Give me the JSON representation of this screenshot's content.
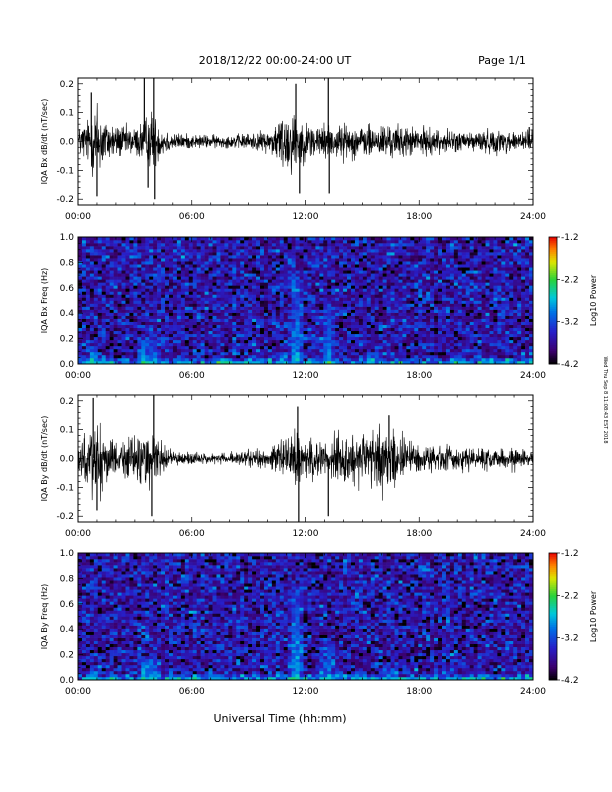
{
  "header": {
    "title": "2018/12/22  00:00-24:00 UT",
    "page": "Page 1/1"
  },
  "xlabel": "Universal Time (hh:mm)",
  "side_note": "Wed Thu Sep 8 11:08:43 EST 2018",
  "colorbar": {
    "label": "Log10 Power",
    "ticks": [
      "-1.2",
      "-2.2",
      "-3.2",
      "-4.2"
    ]
  },
  "chart_data": [
    {
      "type": "line",
      "name": "bx-dbdt",
      "ylabel": "IQA Bx dB/dt (nT/sec)",
      "ylim": [
        -0.22,
        0.22
      ],
      "yticks": [
        "0.2",
        "0.1",
        "0.0",
        "-0.1",
        "-0.2"
      ],
      "xticks": [
        "00:00",
        "06:00",
        "12:00",
        "18:00",
        "24:00"
      ],
      "xlim": [
        "00:00",
        "24:00"
      ],
      "envelope": {
        "hours": [
          0.0,
          0.6,
          1.0,
          1.5,
          2.0,
          3.0,
          3.5,
          3.9,
          4.3,
          5.0,
          6.0,
          8.0,
          10.0,
          10.5,
          11.0,
          11.5,
          12.0,
          12.5,
          13.0,
          14.0,
          15.0,
          16.0,
          17.0,
          18.0,
          19.0,
          20.0,
          21.0,
          22.0,
          23.0,
          23.5,
          24.0
        ],
        "amplitude": [
          0.04,
          0.07,
          0.13,
          0.06,
          0.05,
          0.04,
          0.07,
          0.09,
          0.05,
          0.025,
          0.02,
          0.018,
          0.03,
          0.06,
          0.1,
          0.09,
          0.05,
          0.06,
          0.05,
          0.05,
          0.045,
          0.05,
          0.045,
          0.04,
          0.035,
          0.03,
          0.03,
          0.035,
          0.03,
          0.04,
          0.03
        ]
      },
      "spikes": [
        {
          "hour": 0.7,
          "value": 0.17
        },
        {
          "hour": 1.0,
          "value": -0.19
        },
        {
          "hour": 3.5,
          "value": 0.22
        },
        {
          "hour": 3.7,
          "value": -0.16
        },
        {
          "hour": 4.0,
          "value": 0.22
        },
        {
          "hour": 4.05,
          "value": -0.2
        },
        {
          "hour": 11.5,
          "value": 0.2
        },
        {
          "hour": 11.7,
          "value": -0.18
        },
        {
          "hour": 13.2,
          "value": 0.22
        },
        {
          "hour": 13.25,
          "value": -0.18
        },
        {
          "hour": 23.8,
          "value": 0.05
        }
      ]
    },
    {
      "type": "heatmap",
      "name": "bx-spectrogram",
      "ylabel": "IQA Bx Freq (Hz)",
      "ylim": [
        0.0,
        1.0
      ],
      "yticks": [
        "1.0",
        "0.8",
        "0.6",
        "0.4",
        "0.2",
        "0.0"
      ],
      "xticks": [
        "00:00",
        "06:00",
        "12:00",
        "18:00",
        "24:00"
      ],
      "zlim": [
        -4.2,
        -1.2
      ],
      "background_log_power": -3.6,
      "bands": [
        {
          "hour": 0.8,
          "max_freq": 0.1,
          "level": -2.4
        },
        {
          "hour": 3.5,
          "max_freq": 0.2,
          "level": -2.6
        },
        {
          "hour": 4.0,
          "max_freq": 0.2,
          "level": -2.8
        },
        {
          "hour": 11.5,
          "max_freq": 0.75,
          "level": -2.6
        },
        {
          "hour": 13.2,
          "max_freq": 0.5,
          "level": -2.9
        },
        {
          "hour": 15.5,
          "max_freq": 0.1,
          "level": -2.7
        }
      ]
    },
    {
      "type": "line",
      "name": "by-dbdt",
      "ylabel": "IQA By dB/dt (nT/sec)",
      "ylim": [
        -0.22,
        0.22
      ],
      "yticks": [
        "0.2",
        "0.1",
        "0.0",
        "-0.1",
        "-0.2"
      ],
      "xticks": [
        "00:00",
        "06:00",
        "12:00",
        "18:00",
        "24:00"
      ],
      "xlim": [
        "00:00",
        "24:00"
      ],
      "envelope": {
        "hours": [
          0.0,
          0.6,
          1.0,
          1.5,
          2.0,
          3.0,
          3.5,
          3.9,
          4.3,
          5.0,
          6.0,
          8.0,
          10.0,
          10.5,
          11.0,
          11.5,
          12.0,
          12.5,
          13.0,
          14.0,
          15.0,
          16.0,
          16.5,
          17.0,
          18.0,
          19.0,
          20.0,
          21.0,
          22.0,
          23.0,
          24.0
        ],
        "amplitude": [
          0.05,
          0.09,
          0.13,
          0.07,
          0.05,
          0.06,
          0.08,
          0.08,
          0.05,
          0.02,
          0.015,
          0.015,
          0.03,
          0.05,
          0.06,
          0.08,
          0.05,
          0.06,
          0.06,
          0.07,
          0.08,
          0.1,
          0.09,
          0.06,
          0.05,
          0.04,
          0.035,
          0.03,
          0.03,
          0.03,
          0.025
        ]
      },
      "spikes": [
        {
          "hour": 0.8,
          "value": 0.21
        },
        {
          "hour": 1.0,
          "value": -0.18
        },
        {
          "hour": 3.9,
          "value": -0.2
        },
        {
          "hour": 4.0,
          "value": 0.22
        },
        {
          "hour": 11.6,
          "value": 0.18
        },
        {
          "hour": 11.65,
          "value": -0.22
        },
        {
          "hour": 13.2,
          "value": -0.2
        },
        {
          "hour": 16.4,
          "value": 0.15
        }
      ]
    },
    {
      "type": "heatmap",
      "name": "by-spectrogram",
      "ylabel": "IQA By Freq (Hz)",
      "ylim": [
        0.0,
        1.0
      ],
      "yticks": [
        "1.0",
        "0.8",
        "0.6",
        "0.4",
        "0.2",
        "0.0"
      ],
      "xticks": [
        "00:00",
        "06:00",
        "12:00",
        "18:00",
        "24:00"
      ],
      "zlim": [
        -4.2,
        -1.2
      ],
      "background_log_power": -3.6,
      "bands": [
        {
          "hour": 0.8,
          "max_freq": 0.1,
          "level": -2.4
        },
        {
          "hour": 3.5,
          "max_freq": 0.2,
          "level": -2.6
        },
        {
          "hour": 4.0,
          "max_freq": 0.2,
          "level": -2.8
        },
        {
          "hour": 11.5,
          "max_freq": 0.75,
          "level": -2.6
        },
        {
          "hour": 13.2,
          "max_freq": 0.3,
          "level": -2.9
        },
        {
          "hour": 16.5,
          "max_freq": 0.1,
          "level": -2.7
        }
      ]
    }
  ]
}
